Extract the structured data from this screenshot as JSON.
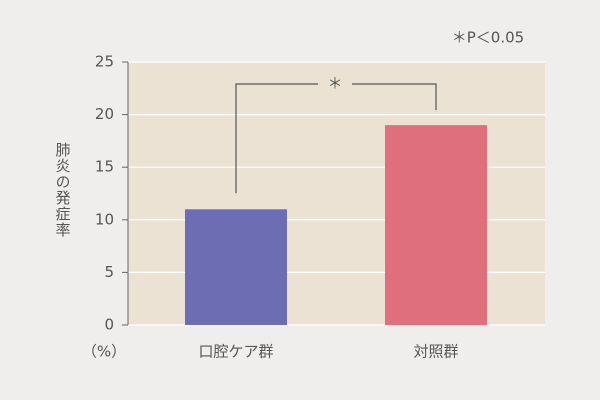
{
  "chart_data": {
    "type": "bar",
    "ylabel": "肺炎の発症率",
    "yunit": "（%）",
    "annotation": "＊P＜0.05",
    "significance": "＊",
    "categories": [
      "口腔ケア群",
      "対照群"
    ],
    "values": [
      11,
      19
    ],
    "colors": [
      "#6d6db3",
      "#e06f7e"
    ],
    "ylim": [
      0,
      25
    ],
    "yticks": [
      0,
      5,
      10,
      15,
      20,
      25
    ],
    "grid": true
  }
}
